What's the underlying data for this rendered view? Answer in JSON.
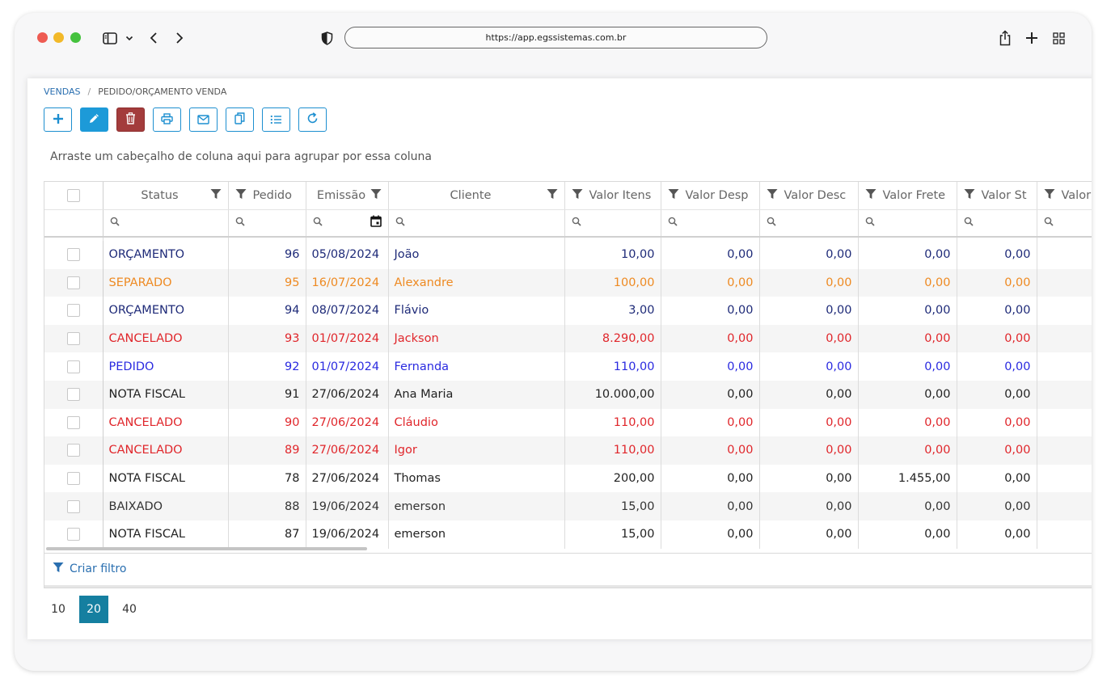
{
  "browser": {
    "url": "https://app.egssistemas.com.br"
  },
  "breadcrumb": {
    "items": [
      "VENDAS",
      "PEDIDO/ORÇAMENTO VENDA"
    ],
    "separator": "/"
  },
  "group_hint": "Arraste um cabeçalho de coluna aqui para agrupar por essa coluna",
  "columns": [
    "Status",
    "Pedido",
    "Emissão",
    "Cliente",
    "Valor Itens",
    "Valor Desp",
    "Valor Desc",
    "Valor Frete",
    "Valor St",
    "Valor"
  ],
  "status_colors": {
    "ORÇAMENTO": "#1e2a78",
    "SEPARADO": "#ee8a22",
    "CANCELADO": "#e0262b",
    "PEDIDO": "#2a2ae0",
    "NOTA FISCAL": "#222222",
    "BAIXADO": "#333333"
  },
  "rows": [
    {
      "status": "ORÇAMENTO",
      "pedido": "96",
      "emissao": "05/08/2024",
      "cliente": "João",
      "itens": "10,00",
      "desp": "0,00",
      "desc": "0,00",
      "frete": "0,00",
      "st": "0,00"
    },
    {
      "status": "SEPARADO",
      "pedido": "95",
      "emissao": "16/07/2024",
      "cliente": "Alexandre",
      "itens": "100,00",
      "desp": "0,00",
      "desc": "0,00",
      "frete": "0,00",
      "st": "0,00"
    },
    {
      "status": "ORÇAMENTO",
      "pedido": "94",
      "emissao": "08/07/2024",
      "cliente": "Flávio",
      "itens": "3,00",
      "desp": "0,00",
      "desc": "0,00",
      "frete": "0,00",
      "st": "0,00"
    },
    {
      "status": "CANCELADO",
      "pedido": "93",
      "emissao": "01/07/2024",
      "cliente": "Jackson",
      "itens": "8.290,00",
      "desp": "0,00",
      "desc": "0,00",
      "frete": "0,00",
      "st": "0,00"
    },
    {
      "status": "PEDIDO",
      "pedido": "92",
      "emissao": "01/07/2024",
      "cliente": "Fernanda",
      "itens": "110,00",
      "desp": "0,00",
      "desc": "0,00",
      "frete": "0,00",
      "st": "0,00"
    },
    {
      "status": "NOTA FISCAL",
      "pedido": "91",
      "emissao": "27/06/2024",
      "cliente": "Ana Maria",
      "itens": "10.000,00",
      "desp": "0,00",
      "desc": "0,00",
      "frete": "0,00",
      "st": "0,00"
    },
    {
      "status": "CANCELADO",
      "pedido": "90",
      "emissao": "27/06/2024",
      "cliente": "Cláudio",
      "itens": "110,00",
      "desp": "0,00",
      "desc": "0,00",
      "frete": "0,00",
      "st": "0,00"
    },
    {
      "status": "CANCELADO",
      "pedido": "89",
      "emissao": "27/06/2024",
      "cliente": "Igor",
      "itens": "110,00",
      "desp": "0,00",
      "desc": "0,00",
      "frete": "0,00",
      "st": "0,00"
    },
    {
      "status": "NOTA FISCAL",
      "pedido": "78",
      "emissao": "27/06/2024",
      "cliente": "Thomas",
      "itens": "200,00",
      "desp": "0,00",
      "desc": "0,00",
      "frete": "1.455,00",
      "st": "0,00"
    },
    {
      "status": "BAIXADO",
      "pedido": "88",
      "emissao": "19/06/2024",
      "cliente": "emerson",
      "itens": "15,00",
      "desp": "0,00",
      "desc": "0,00",
      "frete": "0,00",
      "st": "0,00"
    },
    {
      "status": "NOTA FISCAL",
      "pedido": "87",
      "emissao": "19/06/2024",
      "cliente": "emerson",
      "itens": "15,00",
      "desp": "0,00",
      "desc": "0,00",
      "frete": "0,00",
      "st": "0,00"
    }
  ],
  "filter_builder": "Criar filtro",
  "page_sizes": [
    "10",
    "20",
    "40"
  ],
  "page_size_selected": "20"
}
